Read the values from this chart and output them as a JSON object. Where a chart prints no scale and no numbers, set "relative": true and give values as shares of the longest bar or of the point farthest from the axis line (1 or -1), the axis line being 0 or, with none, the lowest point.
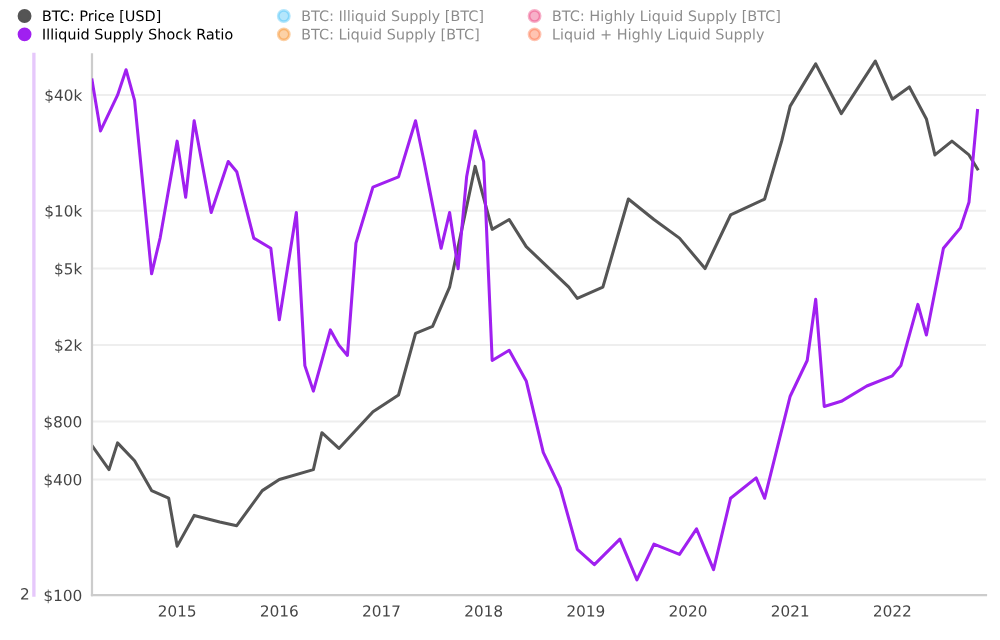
{
  "chart_data": [
    {
      "type": "line",
      "log": "y",
      "grid": "y",
      "legend": "top",
      "ylim": [
        100,
        65000
      ],
      "yticks": [
        {
          "value": 100,
          "label": "$100"
        },
        {
          "value": 400,
          "label": "$400"
        },
        {
          "value": 800,
          "label": "$800"
        },
        {
          "value": 2000,
          "label": "$2k"
        },
        {
          "value": 5000,
          "label": "$5k"
        },
        {
          "value": 10000,
          "label": "$10k"
        },
        {
          "value": 40000,
          "label": "$40k"
        }
      ],
      "xlim": [
        "2014-03",
        "2022-12"
      ],
      "xticks": [
        "2015",
        "2016",
        "2017",
        "2018",
        "2019",
        "2020",
        "2021",
        "2022"
      ],
      "series": [
        {
          "name": "BTC: Price [USD]",
          "color": "#555555",
          "x": [
            "2014-03",
            "2014-05",
            "2014-06",
            "2014-08",
            "2014-10",
            "2014-12",
            "2015-01",
            "2015-03",
            "2015-06",
            "2015-08",
            "2015-11",
            "2016-01",
            "2016-05",
            "2016-06",
            "2016-08",
            "2016-12",
            "2017-03",
            "2017-05",
            "2017-07",
            "2017-09",
            "2017-12",
            "2018-02",
            "2018-04",
            "2018-06",
            "2018-11",
            "2018-12",
            "2019-03",
            "2019-06",
            "2019-09",
            "2019-12",
            "2020-03",
            "2020-06",
            "2020-10",
            "2020-12",
            "2021-01",
            "2021-04",
            "2021-07",
            "2021-11",
            "2022-01",
            "2022-03",
            "2022-05",
            "2022-06",
            "2022-08",
            "2022-10",
            "2022-11"
          ],
          "values": [
            600,
            450,
            620,
            500,
            350,
            320,
            180,
            260,
            240,
            230,
            350,
            400,
            450,
            700,
            580,
            900,
            1100,
            2300,
            2500,
            4000,
            17000,
            8000,
            9000,
            6500,
            4000,
            3500,
            4000,
            11500,
            9000,
            7200,
            5000,
            9500,
            11500,
            23000,
            35000,
            58000,
            32000,
            60000,
            38000,
            44000,
            30000,
            19500,
            23000,
            19500,
            16500
          ]
        },
        {
          "name": "BTC: Illiquid Supply [BTC]",
          "color": "#29b6f6"
        },
        {
          "name": "BTC: Liquid Supply [BTC]",
          "color": "#f57c00"
        },
        {
          "name": "BTC: Highly Liquid Supply [BTC]",
          "color": "#e91e63"
        },
        {
          "name": "Liquid + Highly Liquid Supply",
          "color": "#ff5722"
        }
      ]
    },
    {
      "type": "line",
      "relative": true,
      "legend": "top",
      "xlim": [
        "2014-03",
        "2022-12"
      ],
      "annotations": [
        "2"
      ],
      "series": [
        {
          "name": "Illiquid Supply Shock Ratio",
          "color": "#a020f0",
          "x": [
            "2014-03",
            "2014-04",
            "2014-06",
            "2014-07",
            "2014-08",
            "2014-10",
            "2014-11",
            "2015-01",
            "2015-02",
            "2015-03",
            "2015-05",
            "2015-07",
            "2015-08",
            "2015-10",
            "2015-12",
            "2016-01",
            "2016-03",
            "2016-04",
            "2016-05",
            "2016-07",
            "2016-08",
            "2016-09",
            "2016-10",
            "2016-12",
            "2017-03",
            "2017-05",
            "2017-06",
            "2017-08",
            "2017-09",
            "2017-10",
            "2017-11",
            "2017-12",
            "2018-01",
            "2018-02",
            "2018-04",
            "2018-06",
            "2018-08",
            "2018-10",
            "2018-12",
            "2019-02",
            "2019-05",
            "2019-07",
            "2019-09",
            "2019-12",
            "2020-02",
            "2020-04",
            "2020-06",
            "2020-09",
            "2020-10",
            "2021-01",
            "2021-03",
            "2021-04",
            "2021-05",
            "2021-07",
            "2021-10",
            "2022-01",
            "2022-02",
            "2022-04",
            "2022-05",
            "2022-07",
            "2022-09",
            "2022-10",
            "2022-11"
          ],
          "values": [
            0.98,
            0.88,
            0.95,
            1.0,
            0.94,
            0.6,
            0.67,
            0.86,
            0.75,
            0.9,
            0.72,
            0.82,
            0.8,
            0.67,
            0.65,
            0.51,
            0.72,
            0.42,
            0.37,
            0.49,
            0.46,
            0.44,
            0.66,
            0.77,
            0.79,
            0.9,
            0.82,
            0.65,
            0.72,
            0.61,
            0.79,
            0.88,
            0.82,
            0.43,
            0.45,
            0.39,
            0.25,
            0.18,
            0.06,
            0.03,
            0.08,
            0.0,
            0.07,
            0.05,
            0.1,
            0.02,
            0.16,
            0.2,
            0.16,
            0.36,
            0.43,
            0.55,
            0.34,
            0.35,
            0.38,
            0.4,
            0.42,
            0.54,
            0.48,
            0.65,
            0.69,
            0.74,
            0.92
          ]
        }
      ]
    }
  ]
}
